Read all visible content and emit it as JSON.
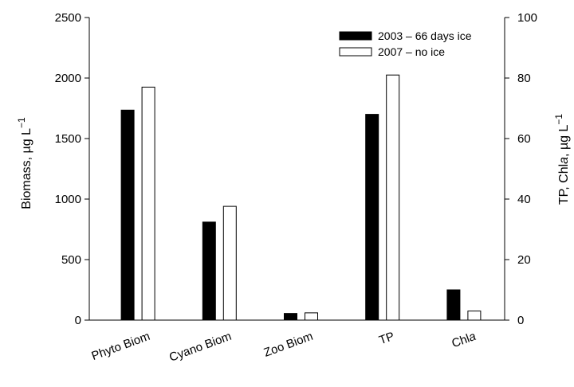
{
  "chart_data": {
    "type": "bar",
    "categories": [
      "Phyto Biom",
      "Cyano Biom",
      "Zoo Biom",
      "TP",
      "Chla"
    ],
    "category_label_italic_part": {
      "Chla": "a"
    },
    "series": [
      {
        "name": "2003 – 66 days ice",
        "color": "#000000",
        "values": [
          1735,
          810,
          55,
          68,
          10
        ]
      },
      {
        "name": "2007 – no ice",
        "color": "#ffffff",
        "values": [
          1925,
          940,
          60,
          81,
          3
        ]
      }
    ],
    "axis_assignment": [
      "left",
      "left",
      "left",
      "right",
      "right"
    ],
    "y_left": {
      "label": "Biomass, µg L",
      "label_superscript": "−1",
      "lim": [
        0,
        2500
      ],
      "ticks": [
        "0",
        "500",
        "1000",
        "1500",
        "2000",
        "2500"
      ]
    },
    "y_right": {
      "label": "TP, Chla, µg L",
      "label_superscript": "−1",
      "lim": [
        0,
        100
      ],
      "ticks": [
        "0",
        "20",
        "40",
        "60",
        "80",
        "100"
      ]
    },
    "legend_position": "top-right",
    "grid": false
  }
}
